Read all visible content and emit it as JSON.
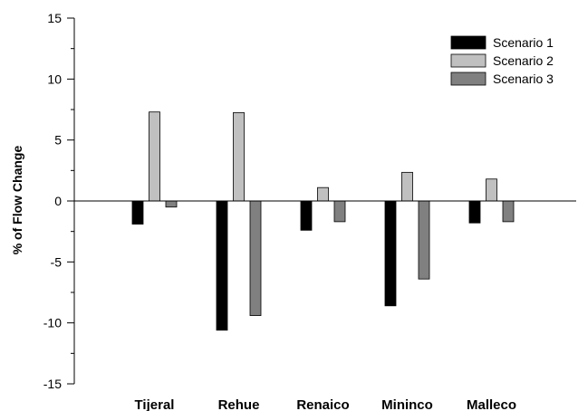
{
  "chart_data": {
    "type": "bar",
    "ylabel": "% of  Flow Change",
    "xlabel": "",
    "ylim": [
      -15,
      15
    ],
    "y_major_step": 5,
    "y_minor_step": 2.5,
    "grid": false,
    "legend_position": "top-right",
    "categories": [
      "Tijeral",
      "Rehue",
      "Renaico",
      "Mininco",
      "Malleco"
    ],
    "series": [
      {
        "name": "Scenario 1",
        "color": "#000000",
        "values": [
          -1.9,
          -10.6,
          -2.4,
          -8.6,
          -1.8
        ]
      },
      {
        "name": "Scenario 2",
        "color": "#c0c0c0",
        "values": [
          7.3,
          7.25,
          1.1,
          2.35,
          1.8
        ]
      },
      {
        "name": "Scenario 3",
        "color": "#808080",
        "values": [
          -0.5,
          -9.4,
          -1.7,
          -6.4,
          -1.7
        ]
      }
    ]
  }
}
